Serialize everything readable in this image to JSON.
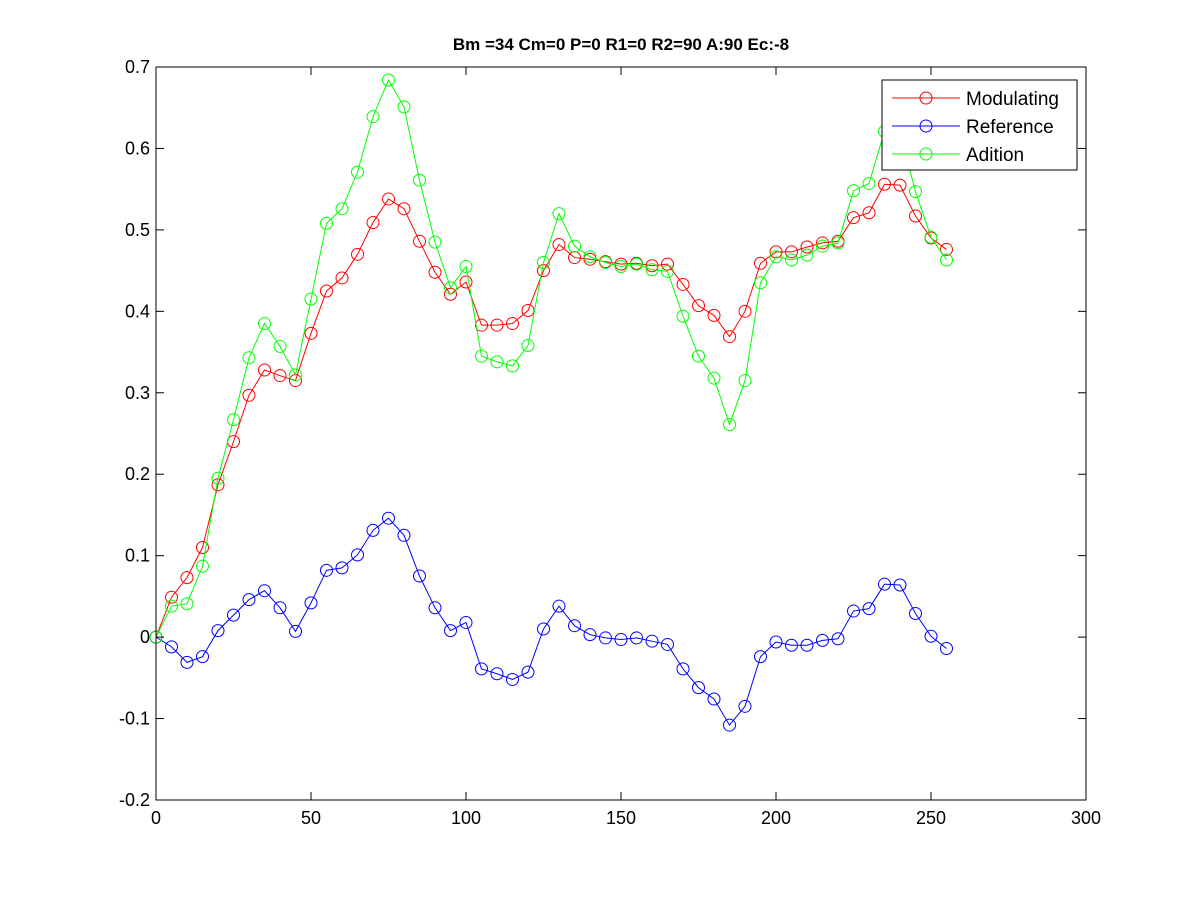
{
  "chart_data": {
    "type": "line",
    "title": "Bm =34  Cm=0  P=0  R1=0  R2=90  A:90  Ec:-8",
    "xlabel": "",
    "ylabel": "",
    "xlim": [
      0,
      300
    ],
    "ylim": [
      -0.2,
      0.7
    ],
    "xticks": [
      0,
      50,
      100,
      150,
      200,
      250,
      300
    ],
    "yticks": [
      -0.2,
      -0.1,
      0,
      0.1,
      0.2,
      0.3,
      0.4,
      0.5,
      0.6,
      0.7
    ],
    "xtick_labels": [
      "0",
      "50",
      "100",
      "150",
      "200",
      "250",
      "300"
    ],
    "ytick_labels": [
      "-0.2",
      "-0.1",
      "0",
      "0.1",
      "0.2",
      "0.3",
      "0.4",
      "0.5",
      "0.6",
      "0.7"
    ],
    "grid": false,
    "legend_position": "top-right",
    "marker": "circle",
    "x": [
      0,
      5,
      10,
      15,
      20,
      25,
      30,
      35,
      40,
      45,
      50,
      55,
      60,
      65,
      70,
      75,
      80,
      85,
      90,
      95,
      100,
      105,
      110,
      115,
      120,
      125,
      130,
      135,
      140,
      145,
      150,
      155,
      160,
      165,
      170,
      175,
      180,
      185,
      190,
      195,
      200,
      205,
      210,
      215,
      220,
      225,
      230,
      235,
      240,
      245,
      250,
      255
    ],
    "series": [
      {
        "name": "Modulating",
        "color": "#ff0000",
        "values": [
          0.0,
          0.049,
          0.073,
          0.11,
          0.187,
          0.24,
          0.297,
          0.328,
          0.321,
          0.315,
          0.373,
          0.425,
          0.441,
          0.47,
          0.509,
          0.538,
          0.526,
          0.486,
          0.448,
          0.421,
          0.436,
          0.383,
          0.383,
          0.385,
          0.401,
          0.45,
          0.482,
          0.466,
          0.464,
          0.461,
          0.458,
          0.459,
          0.456,
          0.458,
          0.433,
          0.407,
          0.395,
          0.369,
          0.4,
          0.459,
          0.473,
          0.473,
          0.479,
          0.484,
          0.486,
          0.515,
          0.521,
          0.556,
          0.555,
          0.517,
          0.49,
          0.476
        ]
      },
      {
        "name": "Reference",
        "color": "#0000ff",
        "values": [
          0.0,
          -0.012,
          -0.031,
          -0.024,
          0.008,
          0.027,
          0.046,
          0.057,
          0.036,
          0.007,
          0.042,
          0.082,
          0.085,
          0.101,
          0.131,
          0.146,
          0.125,
          0.075,
          0.036,
          0.008,
          0.018,
          -0.039,
          -0.045,
          -0.052,
          -0.043,
          0.01,
          0.038,
          0.014,
          0.003,
          -0.001,
          -0.003,
          -0.001,
          -0.005,
          -0.009,
          -0.039,
          -0.062,
          -0.076,
          -0.108,
          -0.085,
          -0.024,
          -0.006,
          -0.01,
          -0.01,
          -0.004,
          -0.002,
          0.032,
          0.035,
          0.065,
          0.064,
          0.029,
          0.001,
          -0.014
        ]
      },
      {
        "name": "Adition",
        "color": "#00ff00",
        "values": [
          0.0,
          0.038,
          0.041,
          0.087,
          0.195,
          0.267,
          0.343,
          0.385,
          0.357,
          0.322,
          0.415,
          0.508,
          0.526,
          0.571,
          0.639,
          0.684,
          0.651,
          0.561,
          0.485,
          0.429,
          0.455,
          0.345,
          0.338,
          0.333,
          0.358,
          0.46,
          0.52,
          0.48,
          0.467,
          0.46,
          0.455,
          0.458,
          0.451,
          0.449,
          0.394,
          0.345,
          0.318,
          0.261,
          0.315,
          0.435,
          0.467,
          0.463,
          0.469,
          0.48,
          0.484,
          0.548,
          0.557,
          0.621,
          0.619,
          0.547,
          0.491,
          0.463
        ]
      }
    ]
  }
}
